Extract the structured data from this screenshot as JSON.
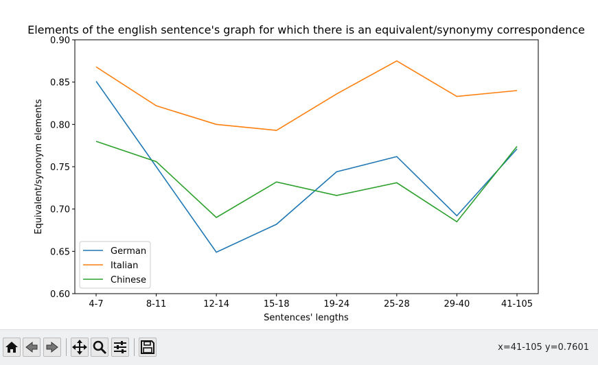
{
  "chart_data": {
    "type": "line",
    "title": "Elements of the english sentence's graph for which there is an equivalent/synonymy correspondence",
    "xlabel": "Sentences' lengths",
    "ylabel": "Equivalent/synonym elements",
    "categories": [
      "4-7",
      "8-11",
      "12-14",
      "15-18",
      "19-24",
      "25-28",
      "29-40",
      "41-105"
    ],
    "ylim": [
      0.6,
      0.9
    ],
    "yticks": [
      "0.60",
      "0.65",
      "0.70",
      "0.75",
      "0.80",
      "0.85",
      "0.90"
    ],
    "grid": false,
    "legend_position": "lower-left",
    "series": [
      {
        "name": "German",
        "color": "#1f77b4",
        "values": [
          0.851,
          0.75,
          0.649,
          0.682,
          0.744,
          0.762,
          0.692,
          0.771
        ]
      },
      {
        "name": "Italian",
        "color": "#ff7f0e",
        "values": [
          0.868,
          0.822,
          0.8,
          0.793,
          0.836,
          0.875,
          0.833,
          0.84
        ]
      },
      {
        "name": "Chinese",
        "color": "#2ca02c",
        "values": [
          0.78,
          0.756,
          0.69,
          0.732,
          0.716,
          0.731,
          0.685,
          0.774
        ]
      }
    ]
  },
  "toolbar": {
    "buttons": [
      {
        "name": "home-button",
        "icon": "home-icon"
      },
      {
        "name": "back-button",
        "icon": "arrow-left-icon"
      },
      {
        "name": "forward-button",
        "icon": "arrow-right-icon"
      },
      {
        "name": "pan-button",
        "icon": "move-icon"
      },
      {
        "name": "zoom-button",
        "icon": "magnifier-icon"
      },
      {
        "name": "configure-subplots-button",
        "icon": "sliders-icon"
      },
      {
        "name": "save-button",
        "icon": "floppy-disk-icon"
      }
    ],
    "coords": "x=41-105 y=0.7601"
  }
}
